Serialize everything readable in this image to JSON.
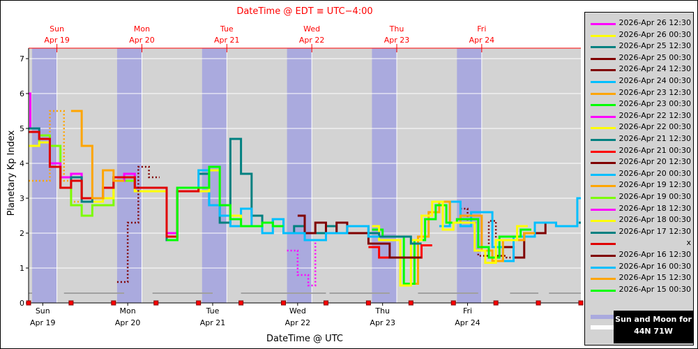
{
  "chart_data": {
    "type": "line",
    "top_title": "DateTime @ EDT ≡ UTC−4:00",
    "xlabel": "DateTime @ UTC",
    "ylabel": "Planetary Kp Index",
    "ylim": [
      0,
      7.3
    ],
    "y_ticks": [
      "0",
      "1",
      "2",
      "3",
      "4",
      "5",
      "6",
      "7"
    ],
    "xlim_hours": [
      0,
      156
    ],
    "top_ticks": [
      {
        "day": "Sun",
        "date": "Apr 19",
        "hour": 8
      },
      {
        "day": "Mon",
        "date": "Apr 20",
        "hour": 32
      },
      {
        "day": "Tue",
        "date": "Apr 21",
        "hour": 56
      },
      {
        "day": "Wed",
        "date": "Apr 22",
        "hour": 80
      },
      {
        "day": "Thu",
        "date": "Apr 23",
        "hour": 104
      },
      {
        "day": "Fri",
        "date": "Apr 24",
        "hour": 128
      }
    ],
    "bottom_ticks": [
      {
        "day": "Sun",
        "date": "Apr 19",
        "hour": 4
      },
      {
        "day": "Mon",
        "date": "Apr 20",
        "hour": 28
      },
      {
        "day": "Tue",
        "date": "Apr 21",
        "hour": 52
      },
      {
        "day": "Wed",
        "date": "Apr 22",
        "hour": 76
      },
      {
        "day": "Thu",
        "date": "Apr 23",
        "hour": 100
      },
      {
        "day": "Fri",
        "date": "Apr 24",
        "hour": 124
      }
    ],
    "night_bands": [
      [
        1,
        8
      ],
      [
        25,
        32
      ],
      [
        49,
        56
      ],
      [
        73,
        80
      ],
      [
        97,
        104
      ],
      [
        121,
        128
      ]
    ],
    "moon_bars": [
      [
        0,
        1
      ],
      [
        10,
        27
      ],
      [
        35,
        52
      ],
      [
        60,
        84
      ],
      [
        85,
        102
      ],
      [
        110,
        127
      ],
      [
        136,
        144
      ],
      [
        147,
        156
      ]
    ],
    "series": [
      {
        "name": "2026-Apr 26 12:30",
        "color": "#ff00ff",
        "steps": []
      },
      {
        "name": "2026-Apr 26 00:30",
        "color": "#ffff00",
        "steps": []
      },
      {
        "name": "2026-Apr 25 12:30",
        "color": "#008080",
        "steps": [
          [
            155.4,
            2.3
          ]
        ]
      },
      {
        "name": "2026-Apr 25 00:30",
        "color": "#800000",
        "steps": [
          [
            134,
            1.6
          ],
          [
            137,
            1.3
          ],
          [
            140,
            2.0
          ],
          [
            146,
            2.3
          ],
          [
            149,
            2.2
          ]
        ]
      },
      {
        "name": "2026-Apr 24 12:30",
        "color": "#800000",
        "dashed": true,
        "steps": [
          [
            122,
            2.7
          ],
          [
            124,
            2.3
          ],
          [
            127,
            1.35
          ],
          [
            130,
            2.35
          ],
          [
            132,
            1.35
          ],
          [
            135,
            1.3
          ]
        ]
      },
      {
        "name": "2026-Apr 24 00:30",
        "color": "#00bfff",
        "steps": [
          [
            116,
            2.2
          ],
          [
            119,
            2.9
          ],
          [
            122,
            2.2
          ],
          [
            125,
            2.6
          ],
          [
            131,
            1.6
          ],
          [
            134,
            1.2
          ],
          [
            137,
            1.9
          ],
          [
            143,
            2.3
          ],
          [
            149,
            2.2
          ],
          [
            155,
            3.0
          ]
        ]
      },
      {
        "name": "2026-Apr 23 12:30",
        "color": "#ffa500",
        "steps": [
          [
            107,
            0.55
          ],
          [
            110,
            1.9
          ],
          [
            113,
            2.6
          ],
          [
            116,
            2.9
          ],
          [
            119,
            2.3
          ],
          [
            122,
            2.5
          ],
          [
            128,
            1.5
          ],
          [
            131,
            1.2
          ],
          [
            134,
            1.8
          ],
          [
            140,
            2.0
          ]
        ]
      },
      {
        "name": "2026-Apr 23 00:30",
        "color": "#00ff00",
        "steps": [
          [
            97,
            2.1
          ],
          [
            100,
            1.9
          ],
          [
            106,
            0.55
          ],
          [
            109,
            1.8
          ],
          [
            112,
            2.4
          ],
          [
            115,
            2.8
          ],
          [
            118,
            2.3
          ],
          [
            121,
            2.4
          ],
          [
            127,
            1.6
          ],
          [
            130,
            1.3
          ],
          [
            133,
            1.9
          ],
          [
            139,
            2.1
          ]
        ]
      },
      {
        "name": "2026-Apr 22 12:30",
        "color": "#ff00ff",
        "dashed": true,
        "steps": [
          [
            73,
            1.5
          ],
          [
            76,
            0.8
          ],
          [
            79,
            0.5
          ],
          [
            81,
            1.8
          ]
        ]
      },
      {
        "name": "2026-Apr 22 00:30",
        "color": "#ffff00",
        "steps": [
          [
            97,
            2.2
          ],
          [
            99,
            1.8
          ],
          [
            105,
            0.5
          ],
          [
            108,
            1.8
          ],
          [
            111,
            2.5
          ],
          [
            114,
            2.9
          ],
          [
            117,
            2.1
          ],
          [
            120,
            2.3
          ],
          [
            126,
            1.5
          ],
          [
            129,
            1.15
          ],
          [
            132,
            1.8
          ],
          [
            138,
            2.2
          ]
        ]
      },
      {
        "name": "2026-Apr 21 12:30",
        "color": "#008080",
        "steps": [
          [
            48,
            3.7
          ],
          [
            51,
            2.8
          ],
          [
            54,
            2.3
          ],
          [
            57,
            4.7
          ],
          [
            60,
            3.7
          ],
          [
            63,
            2.5
          ],
          [
            66,
            2.3
          ],
          [
            69,
            2.4
          ],
          [
            72,
            2.0
          ],
          [
            75,
            2.2
          ],
          [
            78,
            2.0
          ],
          [
            84,
            2.2
          ],
          [
            87,
            2.0
          ],
          [
            90,
            2.2
          ],
          [
            96,
            2.0
          ],
          [
            99,
            1.9
          ],
          [
            102,
            1.9
          ],
          [
            108,
            1.7
          ]
        ]
      },
      {
        "name": "2026-Apr 21 00:30",
        "color": "#ff0000",
        "steps": [
          [
            96,
            1.6
          ],
          [
            99,
            1.3
          ],
          [
            105,
            1.3
          ],
          [
            108,
            1.3
          ],
          [
            111,
            1.65
          ]
        ]
      },
      {
        "name": "2026-Apr 20 12:30",
        "color": "#800000",
        "steps": [
          [
            76,
            2.5
          ],
          [
            78,
            2.0
          ],
          [
            81,
            2.3
          ],
          [
            84,
            2.0
          ],
          [
            87,
            2.3
          ],
          [
            90,
            2.0
          ],
          [
            96,
            1.7
          ],
          [
            102,
            1.3
          ],
          [
            108,
            1.3
          ]
        ]
      },
      {
        "name": "2026-Apr 20 00:30",
        "color": "#00bfff",
        "steps": [
          [
            46,
            3.2
          ],
          [
            48,
            3.8
          ],
          [
            51,
            2.8
          ],
          [
            54,
            2.5
          ],
          [
            57,
            2.2
          ],
          [
            60,
            2.7
          ],
          [
            63,
            2.2
          ],
          [
            66,
            2.0
          ],
          [
            69,
            2.4
          ],
          [
            72,
            2.0
          ],
          [
            75,
            2.0
          ],
          [
            78,
            1.8
          ],
          [
            84,
            2.0
          ],
          [
            90,
            2.2
          ],
          [
            96,
            1.9
          ]
        ]
      },
      {
        "name": "2026-Apr 19 12:30",
        "color": "#ffa500",
        "dashed": true,
        "steps": [
          [
            0,
            3.5
          ],
          [
            2,
            3.5
          ],
          [
            6,
            5.5
          ],
          [
            10,
            3.5
          ],
          [
            12,
            2.9
          ]
        ]
      },
      {
        "name": "2026-Apr 19 00:30",
        "color": "#7cfc00",
        "steps": [
          [
            0,
            4.5
          ],
          [
            3,
            4.8
          ],
          [
            6,
            4.5
          ],
          [
            9,
            3.6
          ],
          [
            12,
            2.8
          ],
          [
            15,
            2.5
          ],
          [
            18,
            2.8
          ],
          [
            21,
            2.8
          ],
          [
            24,
            3.5
          ],
          [
            30,
            3.2
          ],
          [
            39,
            1.8
          ],
          [
            42,
            3.3
          ]
        ]
      },
      {
        "name": "2026-Apr 18 12:30",
        "color": "#ff00ff",
        "steps": [
          [
            0,
            6.0
          ],
          [
            0.5,
            5.0
          ],
          [
            3,
            4.7
          ],
          [
            6,
            4.0
          ],
          [
            9,
            3.6
          ],
          [
            12,
            3.7
          ],
          [
            15,
            3.0
          ],
          [
            18,
            3.0
          ],
          [
            21,
            3.3
          ],
          [
            24,
            3.5
          ],
          [
            27,
            3.7
          ],
          [
            30,
            3.3
          ],
          [
            39,
            2.0
          ],
          [
            42,
            3.3
          ],
          [
            48,
            3.3
          ]
        ]
      },
      {
        "name": "2026-Apr 18 00:30",
        "color": "#ffff00",
        "steps": [
          [
            0,
            4.5
          ],
          [
            3,
            4.6
          ],
          [
            6,
            3.9
          ],
          [
            9,
            3.3
          ],
          [
            12,
            3.5
          ],
          [
            15,
            3.0
          ],
          [
            18,
            2.9
          ],
          [
            21,
            3.0
          ],
          [
            24,
            3.6
          ],
          [
            30,
            3.2
          ],
          [
            39,
            1.9
          ],
          [
            42,
            3.2
          ],
          [
            48,
            3.2
          ],
          [
            51,
            3.8
          ],
          [
            54,
            2.8
          ],
          [
            57,
            2.5
          ],
          [
            60,
            2.2
          ]
        ]
      },
      {
        "name": "2026-Apr 17 12:30",
        "color": "#008080",
        "steps": [
          [
            0,
            5.0
          ],
          [
            3,
            4.7
          ],
          [
            6,
            3.9
          ],
          [
            9,
            3.3
          ],
          [
            12,
            3.6
          ],
          [
            15,
            2.9
          ],
          [
            18,
            3.0
          ],
          [
            21,
            3.3
          ],
          [
            24,
            3.6
          ],
          [
            30,
            3.3
          ],
          [
            39,
            1.8
          ],
          [
            42,
            3.2
          ]
        ]
      },
      {
        "name": "x",
        "color": "#e00000",
        "steps": [
          [
            0,
            4.9
          ],
          [
            3,
            4.7
          ],
          [
            6,
            3.9
          ],
          [
            9,
            3.3
          ],
          [
            12,
            3.5
          ],
          [
            15,
            3.0
          ],
          [
            18,
            3.0
          ],
          [
            21,
            3.3
          ],
          [
            24,
            3.6
          ],
          [
            30,
            3.3
          ],
          [
            39,
            1.9
          ],
          [
            42,
            3.2
          ],
          [
            48,
            3.3
          ]
        ]
      },
      {
        "name": "2026-Apr 16 12:30",
        "color": "#800000",
        "dashed": true,
        "steps": [
          [
            25,
            0.6
          ],
          [
            28,
            2.3
          ],
          [
            31,
            3.9
          ],
          [
            34,
            3.6
          ]
        ]
      },
      {
        "name": "2026-Apr 16 00:30",
        "color": "#00bfff",
        "steps": []
      },
      {
        "name": "2026-Apr 15 12:30",
        "color": "#ffa500",
        "steps": [
          [
            12,
            5.5
          ],
          [
            15,
            4.5
          ],
          [
            18,
            3.0
          ],
          [
            21,
            3.8
          ],
          [
            24,
            3.5
          ]
        ]
      },
      {
        "name": "2026-Apr 15 00:30",
        "color": "#00ff00",
        "steps": [
          [
            39,
            1.8
          ],
          [
            42,
            3.3
          ],
          [
            48,
            3.3
          ],
          [
            51,
            3.9
          ],
          [
            54,
            2.8
          ],
          [
            57,
            2.4
          ],
          [
            60,
            2.2
          ],
          [
            66,
            2.3
          ],
          [
            69,
            2.2
          ]
        ]
      }
    ]
  },
  "legend": {
    "entries": [
      {
        "label": "2026-Apr 26 12:30",
        "color": "#ff00ff"
      },
      {
        "label": "2026-Apr 26 00:30",
        "color": "#ffff00"
      },
      {
        "label": "2026-Apr 25 12:30",
        "color": "#008080"
      },
      {
        "label": "2026-Apr 25 00:30",
        "color": "#800000"
      },
      {
        "label": "2026-Apr 24 12:30",
        "color": "#800000"
      },
      {
        "label": "2026-Apr 24 00:30",
        "color": "#00bfff"
      },
      {
        "label": "2026-Apr 23 12:30",
        "color": "#ffa500"
      },
      {
        "label": "2026-Apr 23 00:30",
        "color": "#00ff00"
      },
      {
        "label": "2026-Apr 22 12:30",
        "color": "#ff00ff"
      },
      {
        "label": "2026-Apr 22 00:30",
        "color": "#ffff00"
      },
      {
        "label": "2026-Apr 21 12:30",
        "color": "#008080"
      },
      {
        "label": "2026-Apr 21 00:30",
        "color": "#ff0000"
      },
      {
        "label": "2026-Apr 20 12:30",
        "color": "#800000"
      },
      {
        "label": "2026-Apr 20 00:30",
        "color": "#00bfff"
      },
      {
        "label": "2026-Apr 19 12:30",
        "color": "#ffa500"
      },
      {
        "label": "2026-Apr 19 00:30",
        "color": "#7cfc00"
      },
      {
        "label": "2026-Apr 18 12:30",
        "color": "#ff00ff"
      },
      {
        "label": "2026-Apr 18 00:30",
        "color": "#ffff00"
      },
      {
        "label": "2026-Apr 17 12:30",
        "color": "#008080"
      },
      {
        "label": "x",
        "color": "#e00000"
      },
      {
        "label": "2026-Apr 16 12:30",
        "color": "#800000"
      },
      {
        "label": "2026-Apr 16 00:30",
        "color": "#00bfff"
      },
      {
        "label": "2026-Apr 15 12:30",
        "color": "#ffa500"
      },
      {
        "label": "2026-Apr 15 00:30",
        "color": "#00ff00"
      }
    ],
    "sun_bar_color": "#aaaade",
    "moon_bar_color": "#ffffff",
    "sunmoon_line1": "Sun and Moon for",
    "sunmoon_line2": "44N 71W"
  },
  "colors": {
    "plot_bg": "#d3d3d3",
    "night_band": "#aaaade",
    "accent_red": "#ff0000",
    "moon_bar": "#a0a0a0"
  }
}
